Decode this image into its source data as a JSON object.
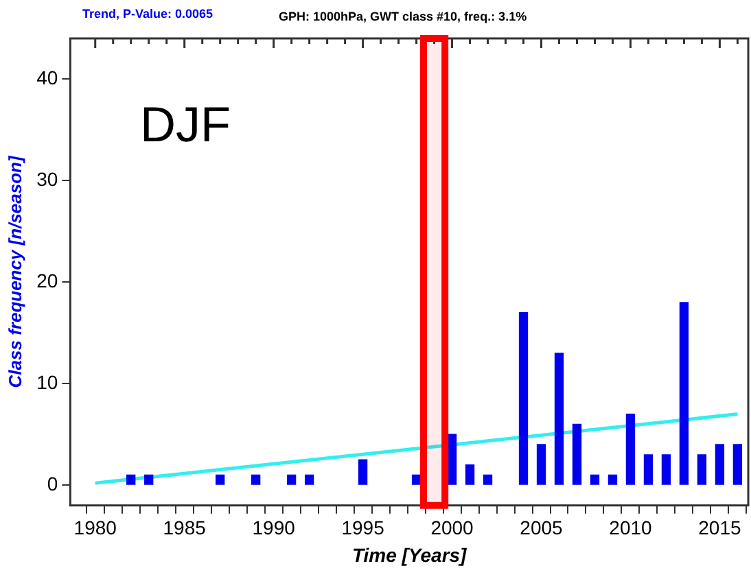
{
  "chart_data": {
    "type": "bar",
    "title": "GPH: 1000hPa,  GWT class #10,  freq.: 3.1%",
    "subtitle": "Trend, P-Value: 0.0065",
    "xlabel": "Time [Years]",
    "ylabel": "Class frequency [n/season]",
    "annotations": [
      "DJF"
    ],
    "x": [
      1982,
      1983,
      1987,
      1989,
      1991,
      1992,
      1995,
      1998,
      2000,
      2001,
      2002,
      2004,
      2005,
      2006,
      2007,
      2008,
      2009,
      2010,
      2011,
      2012,
      2013,
      2014,
      2015,
      2016
    ],
    "series": [
      {
        "color": "#0000ee",
        "values": [
          1,
          1,
          1,
          1,
          1,
          1,
          2.5,
          1,
          5,
          2,
          1,
          17,
          4,
          13,
          6,
          1,
          1,
          7,
          3,
          3,
          18,
          3,
          4,
          4
        ]
      },
      {
        "type": "line",
        "color": "#33eeee",
        "x": [
          1980,
          2016
        ],
        "values": [
          0.2,
          7
        ]
      }
    ],
    "xlim": [
      1978.6,
      2016.6
    ],
    "ylim": [
      -2,
      44
    ],
    "xticks": [
      1980,
      {
        "value": 1981,
        "label": null
      },
      {
        "value": 1982,
        "label": null
      },
      {
        "value": 1983,
        "label": null
      },
      {
        "value": 1984,
        "label": null
      },
      1985,
      {
        "value": 1986,
        "label": null
      },
      {
        "value": 1987,
        "label": null
      },
      {
        "value": 1988,
        "label": null
      },
      {
        "value": 1989,
        "label": null
      },
      1990,
      {
        "value": 1991,
        "label": null
      },
      {
        "value": 1992,
        "label": null
      },
      {
        "value": 1993,
        "label": null
      },
      {
        "value": 1994,
        "label": null
      },
      1995,
      {
        "value": 1996,
        "label": null
      },
      {
        "value": 1997,
        "label": null
      },
      {
        "value": 1998,
        "label": null
      },
      {
        "value": 1999,
        "label": null
      },
      2000,
      {
        "value": 2001,
        "label": null
      },
      {
        "value": 2002,
        "label": null
      },
      {
        "value": 2003,
        "label": null
      },
      {
        "value": 2004,
        "label": null
      },
      2005,
      {
        "value": 2006,
        "label": null
      },
      {
        "value": 2007,
        "label": null
      },
      {
        "value": 2008,
        "label": null
      },
      {
        "value": 2009,
        "label": null
      },
      2010,
      {
        "value": 2011,
        "label": null
      },
      {
        "value": 2012,
        "label": null
      },
      {
        "value": 2013,
        "label": null
      },
      {
        "value": 2014,
        "label": null
      },
      2015,
      {
        "value": 2016,
        "label": null
      }
    ],
    "yticks": [
      0,
      10,
      20,
      30,
      40
    ],
    "bands": [
      {
        "axis": "x",
        "from": 1998.4,
        "to": 1999.6,
        "color": "#ff0000"
      }
    ],
    "grid": false,
    "legend": false,
    "marker": "none"
  }
}
